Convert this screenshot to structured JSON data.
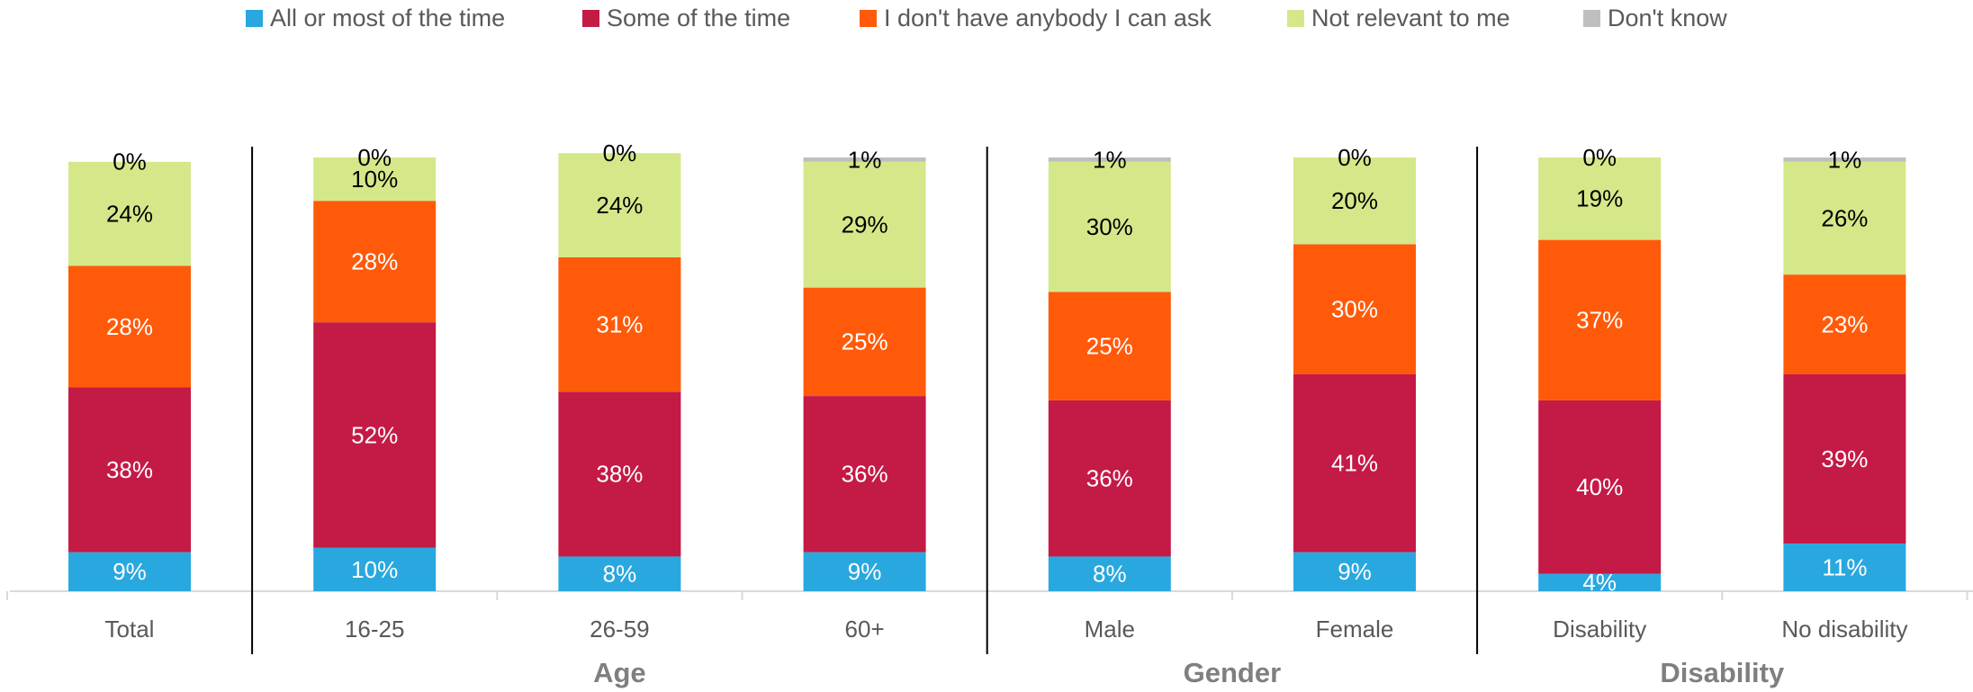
{
  "chart_data": {
    "type": "stacked_bar",
    "categories": [
      "Total",
      "16-25",
      "26-59",
      "60+",
      "Male",
      "Female",
      "Disability",
      "No disability"
    ],
    "groups": [
      {
        "label": "Age",
        "start": 1,
        "end": 3
      },
      {
        "label": "Gender",
        "start": 4,
        "end": 5
      },
      {
        "label": "Disability",
        "start": 6,
        "end": 7
      }
    ],
    "ylim": [
      0,
      100
    ],
    "series": [
      {
        "name": "All or most of the time",
        "color": "#29a8e0",
        "label_color": "#ffffff",
        "values": [
          9,
          10,
          8,
          9,
          8,
          9,
          4,
          11
        ],
        "value_labels": [
          "9%",
          "10%",
          "8%",
          "9%",
          "8%",
          "9%",
          "4%",
          "11%"
        ]
      },
      {
        "name": "Some of the time",
        "color": "#c41a46",
        "label_color": "#ffffff",
        "values": [
          38,
          52,
          38,
          36,
          36,
          41,
          40,
          39
        ],
        "value_labels": [
          "38%",
          "52%",
          "38%",
          "36%",
          "36%",
          "41%",
          "40%",
          "39%"
        ]
      },
      {
        "name": "I don't have anybody I can ask",
        "color": "#ff5a0a",
        "label_color": "#ffffff",
        "values": [
          28,
          28,
          31,
          25,
          25,
          30,
          37,
          23
        ],
        "value_labels": [
          "28%",
          "28%",
          "31%",
          "25%",
          "25%",
          "30%",
          "37%",
          "23%"
        ]
      },
      {
        "name": "Not relevant to me",
        "color": "#d4e88a",
        "label_color": "#000000",
        "values": [
          24,
          10,
          24,
          29,
          30,
          20,
          19,
          26
        ],
        "value_labels": [
          "24%",
          "10%",
          "24%",
          "29%",
          "30%",
          "20%",
          "19%",
          "26%"
        ]
      },
      {
        "name": "Don't know",
        "color": "#bfbfbf",
        "label_color": "#000000",
        "values": [
          0,
          0,
          0,
          1,
          1,
          0,
          0,
          1
        ],
        "value_labels": [
          "0%",
          "0%",
          "0%",
          "1%",
          "1%",
          "0%",
          "0%",
          "1%"
        ]
      }
    ]
  }
}
